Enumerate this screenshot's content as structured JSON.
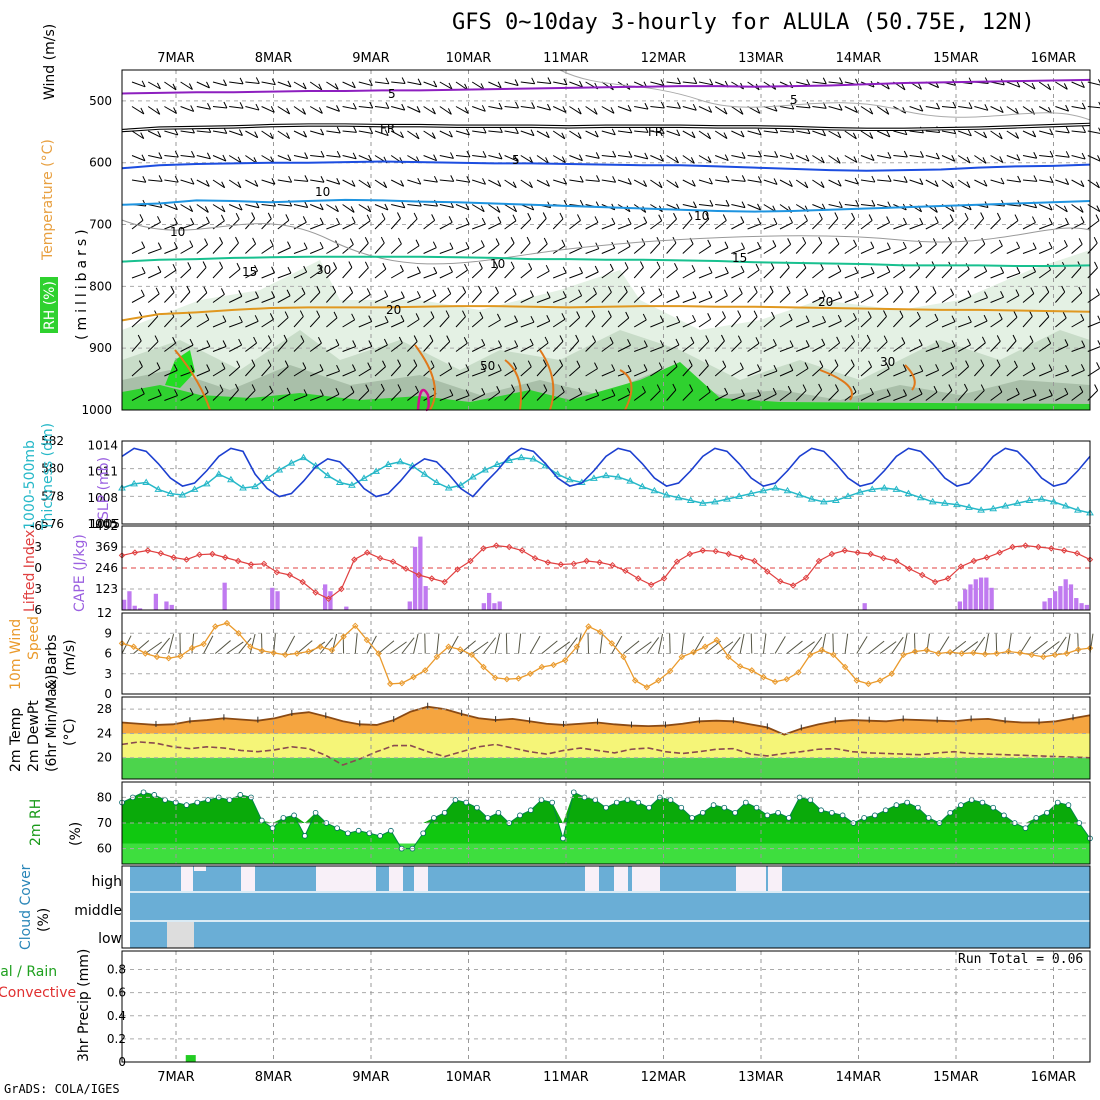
{
  "title": "GFS 0~10day 3-hourly for ALULA (50.75E, 12N)",
  "credit": "GrADS: COLA/IGES",
  "run_total": "Run Total = 0.06",
  "x_dates": [
    "7MAR",
    "8MAR",
    "9MAR",
    "10MAR",
    "11MAR",
    "12MAR",
    "13MAR",
    "14MAR",
    "15MAR",
    "16MAR"
  ],
  "colors": {
    "sounding_green": "#3cc83c",
    "cloud_blue": "#6aaed6",
    "cape_purple": "#c07af0",
    "temp_orange": "#f5a540",
    "dew_yellow": "#f5f578",
    "rh_green": "#2fd12f"
  },
  "chart_data": [
    {
      "type": "area",
      "panel": "sounding",
      "ylabel": "(millibars)",
      "labels": [
        "RH (%)",
        "Temperature (°C)",
        "Wind (m/s)"
      ],
      "yticks": [
        500,
        600,
        700,
        800,
        900,
        1000
      ],
      "ylim": [
        1000,
        450
      ],
      "temperature_contours": [
        {
          "label": "-5",
          "pressure": [
            488,
            487,
            486,
            486,
            485,
            484,
            484,
            483,
            483,
            482,
            481,
            480,
            479,
            478,
            477,
            476,
            476,
            477,
            476,
            475,
            473,
            471,
            470,
            469,
            468,
            467,
            466
          ]
        },
        {
          "label": "FR",
          "pressure": [
            548,
            544,
            543,
            542,
            540,
            539,
            539,
            540,
            540,
            541,
            541,
            541,
            542,
            541,
            541,
            541,
            542,
            542,
            543,
            545,
            546,
            546,
            545,
            544,
            542,
            540,
            538
          ]
        },
        {
          "label": "-5",
          "pressure": [
            609,
            604,
            602,
            601,
            600,
            600,
            599,
            598,
            599,
            600,
            601,
            601,
            602,
            603,
            604,
            604,
            606,
            608,
            610,
            612,
            613,
            612,
            611,
            608,
            606,
            605,
            603
          ]
        },
        {
          "label": "10",
          "pressure": [
            668,
            666,
            661,
            662,
            664,
            662,
            660,
            661,
            663,
            664,
            666,
            668,
            670,
            672,
            674,
            676,
            678,
            679,
            678,
            676,
            674,
            672,
            670,
            668,
            666,
            664,
            662
          ]
        },
        {
          "label": "15",
          "pressure": [
            760,
            757,
            756,
            754,
            753,
            752,
            752,
            752,
            752,
            753,
            754,
            756,
            756,
            757,
            757,
            758,
            759,
            761,
            762,
            763,
            764,
            766,
            766,
            766,
            767,
            767,
            766
          ]
        },
        {
          "label": "20",
          "pressure": [
            855,
            845,
            842,
            838,
            835,
            834,
            834,
            834,
            833,
            832,
            832,
            833,
            834,
            833,
            832,
            832,
            833,
            833,
            834,
            835,
            836,
            837,
            838,
            838,
            839,
            840,
            841
          ]
        }
      ],
      "contour_label_text": [
        "5",
        "FR",
        "5",
        "10",
        "15",
        "20",
        "20",
        "10",
        "15",
        "FR",
        "5",
        "10",
        "30",
        "50",
        "30",
        "10"
      ]
    },
    {
      "type": "line",
      "panel": "thickness_slp",
      "labels": [
        "1000-500mb",
        "Thickness (dm)",
        "SLP (mb)"
      ],
      "left_yticks": [
        576,
        578,
        580,
        582
      ],
      "right_yticks": [
        1005,
        1008,
        1011,
        1014
      ],
      "thickness_dm": [
        578.6,
        578.9,
        579.0,
        578.5,
        578.2,
        578.1,
        578.5,
        578.9,
        579.6,
        579.2,
        578.6,
        578.7,
        579.3,
        579.9,
        580.4,
        580.8,
        580.2,
        579.5,
        579.0,
        578.8,
        579.3,
        579.8,
        580.3,
        580.5,
        580.2,
        579.6,
        579.0,
        578.6,
        578.8,
        579.4,
        579.9,
        580.3,
        580.6,
        580.8,
        580.7,
        580.2,
        579.6,
        579.2,
        579.0,
        579.3,
        579.5,
        579.4,
        579.1,
        578.7,
        578.4,
        578.1,
        577.9,
        577.7,
        577.5,
        577.6,
        577.8,
        578.0,
        578.2,
        578.4,
        578.6,
        578.4,
        578.1,
        577.8,
        577.6,
        577.7,
        578.0,
        578.3,
        578.5,
        578.6,
        578.5,
        578.2,
        577.9,
        577.6,
        577.5,
        577.4,
        577.2,
        577.0,
        577.1,
        577.3,
        577.5,
        577.7,
        577.8,
        577.6,
        577.3,
        577.0,
        576.8
      ]
    },
    {
      "type": "bar",
      "panel": "cape_lifted_index",
      "labels": [
        "Lifted Index",
        "CAPE (J/kg)"
      ],
      "left_yticks": [
        -6,
        -3,
        0,
        3,
        6
      ],
      "right_yticks": [
        123,
        246,
        369,
        492
      ],
      "cape": [
        60,
        110,
        25,
        10,
        0,
        0,
        95,
        0,
        50,
        30,
        0,
        0,
        0,
        0,
        0,
        0,
        0,
        0,
        0,
        160,
        0,
        0,
        0,
        0,
        0,
        0,
        0,
        0,
        130,
        110,
        0,
        0,
        0,
        0,
        0,
        0,
        0,
        0,
        150,
        110,
        0,
        0,
        20,
        0,
        0,
        0,
        0,
        0,
        0,
        0,
        0,
        0,
        0,
        0,
        50,
        370,
        430,
        140,
        0,
        0,
        0,
        0,
        0,
        0,
        0,
        0,
        0,
        0,
        40,
        100,
        40,
        50,
        0,
        0,
        0,
        0,
        0,
        0,
        0,
        0,
        0,
        0,
        0,
        0,
        0,
        0,
        0,
        0,
        0,
        0,
        0,
        0,
        0,
        0,
        0,
        0,
        0,
        0,
        0,
        0,
        0,
        0,
        0,
        0,
        0,
        0,
        0,
        0,
        0,
        0,
        0,
        0,
        0,
        0,
        0,
        0,
        0,
        0,
        0,
        0,
        0,
        0,
        0,
        0,
        0,
        0,
        0,
        0,
        0,
        0,
        0,
        0,
        0,
        0,
        0,
        0,
        0,
        0,
        0,
        0,
        40,
        0,
        0,
        0,
        0,
        0,
        0,
        0,
        0,
        0,
        0,
        0,
        0,
        0,
        0,
        0,
        0,
        0,
        50,
        120,
        150,
        180,
        190,
        190,
        130,
        0,
        0,
        0,
        0,
        0,
        0,
        0,
        0,
        0,
        50,
        70,
        110,
        140,
        180,
        150,
        70,
        40,
        30
      ],
      "lifted_index": [
        -1.8,
        -2.2,
        -2.5,
        -2.1,
        -1.5,
        -1.2,
        -1.9,
        -2.0,
        -1.5,
        -1.0,
        -0.5,
        -0.6,
        0.6,
        1.0,
        2.0,
        3.5,
        4.4,
        3.0,
        -1.2,
        -2.2,
        -1.4,
        -0.9,
        0.1,
        1.0,
        1.5,
        2.0,
        0.2,
        -1.0,
        -2.8,
        -3.2,
        -3.0,
        -2.5,
        -1.4,
        -0.8,
        -0.5,
        -0.6,
        -1.0,
        -0.8,
        -0.4,
        0.4,
        1.5,
        2.4,
        1.5,
        -0.9,
        -2.0,
        -2.5,
        -2.4,
        -2.0,
        -1.5,
        -1.0,
        0.5,
        1.9,
        2.5,
        1.4,
        -1.0,
        -2.0,
        -2.5,
        -2.2,
        -2.0,
        -1.4,
        -1.0,
        0.1,
        1.0,
        2.0,
        1.5,
        -0.2,
        -1.0,
        -1.5,
        -2.2,
        -3.0,
        -3.2,
        -3.0,
        -2.8,
        -2.5,
        -2.1,
        -1.2
      ]
    },
    {
      "type": "line",
      "panel": "wind_10m",
      "labels": [
        "10m Wind",
        "Speed",
        "& Barbs",
        "(m/s)"
      ],
      "yticks": [
        0,
        3,
        6,
        9,
        12
      ],
      "speed": [
        7.5,
        7.0,
        6.0,
        5.5,
        5.3,
        5.6,
        6.8,
        7.4,
        10.0,
        10.5,
        9.0,
        7.0,
        6.4,
        6.1,
        5.8,
        6.0,
        6.3,
        7.0,
        6.5,
        8.5,
        10.1,
        8.0,
        6.0,
        1.5,
        1.6,
        2.5,
        3.5,
        5.5,
        7.0,
        6.6,
        5.8,
        4.0,
        2.4,
        2.2,
        2.3,
        3.0,
        4.0,
        4.3,
        5.0,
        7.0,
        10.0,
        9.2,
        7.5,
        5.5,
        2.0,
        1.0,
        2.0,
        3.4,
        5.5,
        6.2,
        7.0,
        8.0,
        5.5,
        4.1,
        3.5,
        2.5,
        1.8,
        2.2,
        3.2,
        5.8,
        6.5,
        5.8,
        4.0,
        2.0,
        1.5,
        2.0,
        3.0,
        5.8,
        6.3,
        6.5,
        6.0,
        6.2,
        6.0,
        6.1,
        5.9,
        6.0,
        6.3,
        6.1,
        5.8,
        5.5,
        5.8,
        6.0,
        6.6,
        6.8
      ]
    },
    {
      "type": "area",
      "panel": "temp_dew",
      "labels": [
        "2m Temp",
        "2m DewPt",
        "(6hr Min/Max)",
        "(°C)"
      ],
      "yticks": [
        20,
        24,
        28
      ],
      "temp": [
        25.8,
        25.6,
        25.4,
        25.5,
        26.0,
        26.2,
        26.5,
        26.3,
        26.1,
        26.5,
        27.2,
        27.5,
        26.8,
        26.0,
        25.5,
        25.4,
        26.2,
        27.6,
        28.4,
        28.0,
        27.2,
        26.5,
        26.2,
        26.4,
        26.0,
        25.6,
        25.4,
        25.6,
        25.8,
        25.5,
        25.3,
        25.2,
        25.3,
        25.6,
        26.0,
        26.1,
        26.0,
        25.5,
        25.0,
        23.8,
        24.8,
        25.5,
        26.0,
        26.2,
        26.1,
        26.0,
        26.3,
        26.2,
        26.1,
        26.0,
        26.3,
        26.4,
        26.0,
        25.8,
        25.8,
        26.0,
        26.5,
        27.0
      ],
      "dew": [
        22.2,
        22.6,
        22.4,
        21.8,
        21.5,
        21.8,
        21.6,
        21.2,
        21.0,
        21.3,
        21.8,
        21.5,
        20.4,
        18.8,
        19.8,
        21.0,
        22.0,
        22.0,
        21.0,
        20.2,
        21.0,
        21.8,
        22.2,
        21.6,
        21.0,
        20.6,
        21.2,
        21.6,
        21.2,
        20.8,
        21.4,
        21.6,
        21.0,
        20.7,
        21.0,
        21.4,
        21.5,
        20.6,
        20.3,
        20.7,
        21.0,
        21.4,
        21.5,
        21.0,
        20.8,
        20.7,
        20.6,
        20.5,
        20.8,
        21.0,
        20.7,
        20.6,
        20.5,
        20.4,
        20.3,
        20.2,
        20.1,
        20.0
      ]
    },
    {
      "type": "area",
      "panel": "rh_2m",
      "labels": [
        "2m RH",
        "(%)"
      ],
      "yticks": [
        60,
        70,
        80
      ],
      "rh": [
        78,
        80,
        82,
        81,
        79,
        78,
        77,
        78,
        79,
        80,
        79,
        81,
        80,
        71,
        68,
        72,
        73,
        65,
        74,
        70,
        68,
        66,
        67,
        66,
        65,
        67,
        60,
        60,
        66,
        72,
        74,
        79,
        78,
        76,
        72,
        74,
        70,
        73,
        75,
        79,
        78,
        64,
        82,
        80,
        79,
        76,
        78,
        79,
        78,
        76,
        80,
        79,
        76,
        72,
        74,
        77,
        76,
        74,
        78,
        76,
        73,
        74,
        72,
        80,
        79,
        75,
        74,
        73,
        70,
        72,
        73,
        75,
        77,
        78,
        76,
        72,
        70,
        74,
        77,
        79,
        78,
        76,
        73,
        70,
        68,
        72,
        74,
        78,
        77,
        70,
        64
      ]
    },
    {
      "type": "bar",
      "panel": "cloud_cover",
      "labels": [
        "Cloud Cover",
        "(%)"
      ],
      "categories": [
        "high",
        "middle",
        "low"
      ],
      "note": "mostly full coverage; reduced high cloud near 7MAR, 9MAR, 11MAR, 12MAR, 13MAR; low cloud gap near 7MAR"
    },
    {
      "type": "bar",
      "panel": "precip",
      "labels": [
        "Total / Rain",
        "Convective",
        "3hr Precip (mm)"
      ],
      "yticks": [
        0,
        0.2,
        0.4,
        0.6,
        0.8
      ],
      "precip_bars": [
        {
          "day_offset": 0.1,
          "value": 0.06
        }
      ]
    }
  ]
}
